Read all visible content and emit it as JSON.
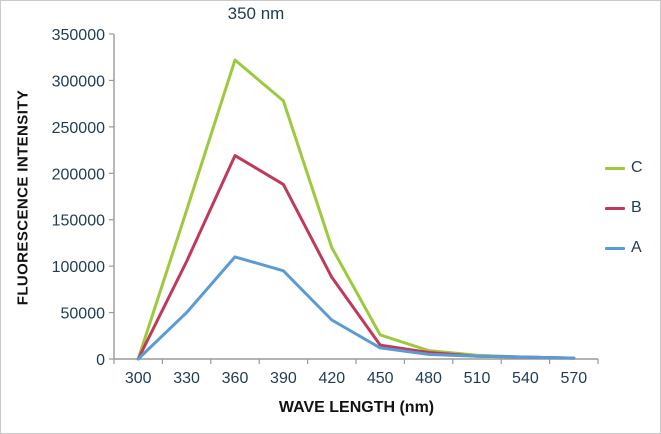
{
  "chart_data": {
    "type": "line",
    "title": "350 nm",
    "xlabel": "WAVE LENGTH (nm)",
    "ylabel": "FLUORESCENCE INTENSITY",
    "categories": [
      300,
      330,
      360,
      390,
      420,
      450,
      480,
      510,
      540,
      570
    ],
    "series": [
      {
        "name": "C",
        "color": "#9bcb3c",
        "values": [
          0,
          160000,
          322000,
          278000,
          120000,
          26000,
          9000,
          4000,
          2000,
          1000
        ]
      },
      {
        "name": "B",
        "color": "#c0395b",
        "values": [
          0,
          105000,
          219000,
          188000,
          88000,
          15000,
          7000,
          3000,
          2000,
          1000
        ]
      },
      {
        "name": "A",
        "color": "#5b9bd5",
        "values": [
          0,
          50000,
          110000,
          95000,
          42000,
          12000,
          5000,
          3000,
          2000,
          1000
        ]
      }
    ],
    "ylim": [
      0,
      350000
    ],
    "y_tick_step": 50000,
    "grid": false,
    "legend_position": "right",
    "legend_order": [
      "C",
      "B",
      "A"
    ]
  },
  "colors": {
    "axis_line": "#9a9a9a",
    "tick_text": "#1f3b55",
    "label_text": "#121212"
  }
}
